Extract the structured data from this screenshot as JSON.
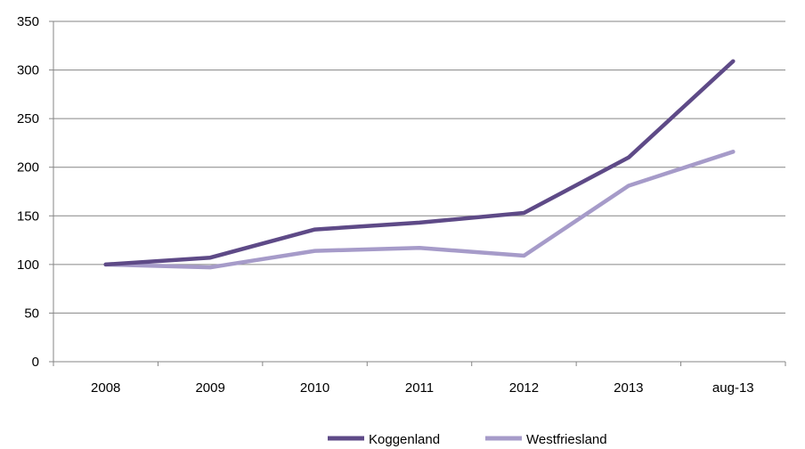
{
  "chart_data": {
    "type": "line",
    "title": "",
    "xlabel": "",
    "ylabel": "",
    "categories": [
      "2008",
      "2009",
      "2010",
      "2011",
      "2012",
      "2013",
      "aug-13"
    ],
    "ylim": [
      0,
      350
    ],
    "yticks": [
      0,
      50,
      100,
      150,
      200,
      250,
      300,
      350
    ],
    "grid": true,
    "legend_position": "bottom",
    "series": [
      {
        "name": "Koggenland",
        "color": "#5e4a87",
        "values": [
          100,
          107,
          136,
          143,
          153,
          210,
          309
        ]
      },
      {
        "name": "Westfriesland",
        "color": "#a69bc9",
        "values": [
          100,
          97,
          114,
          117,
          109,
          181,
          216
        ]
      }
    ]
  }
}
